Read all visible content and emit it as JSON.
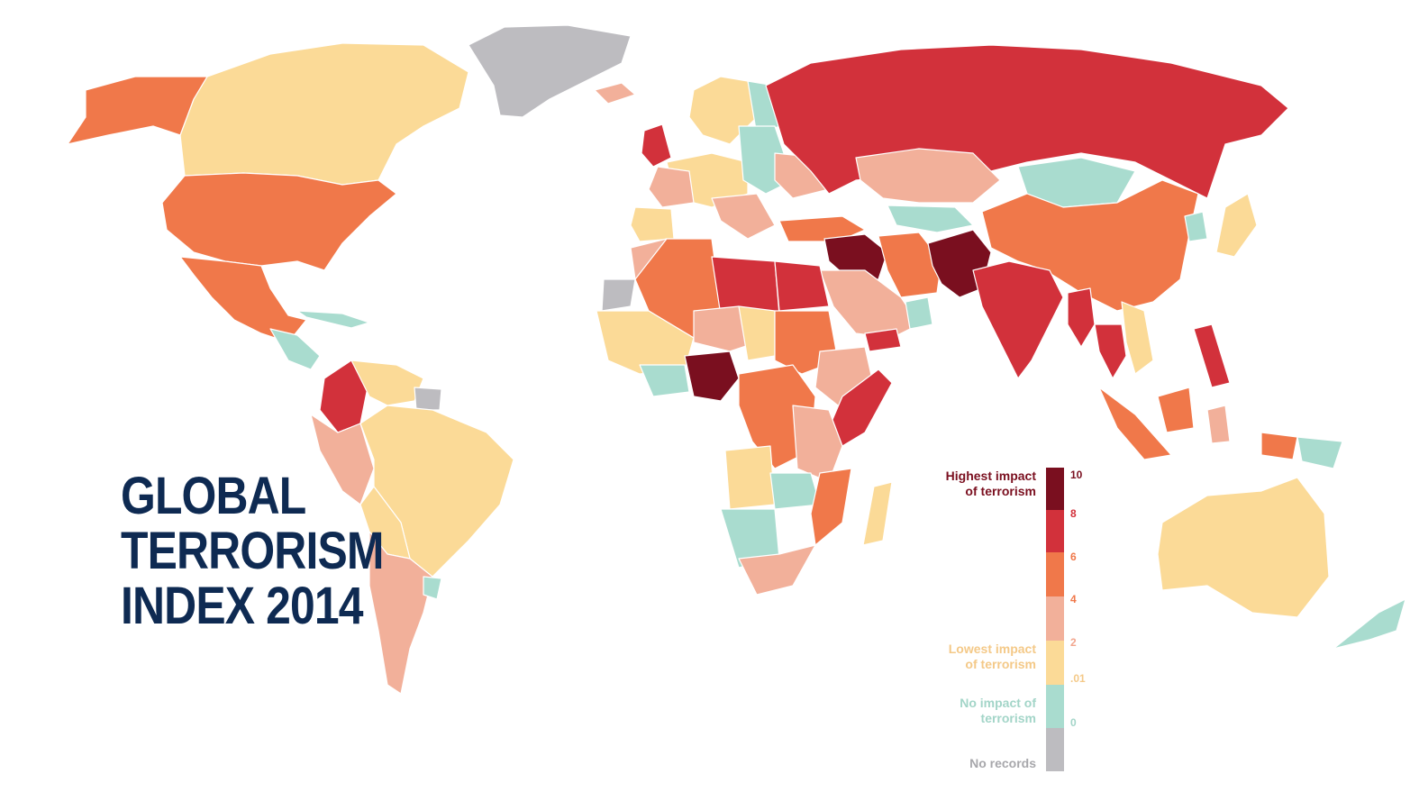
{
  "title": {
    "line1": "GLOBAL",
    "line2": "TERRORISM",
    "line3": "INDEX 2014"
  },
  "legend": {
    "high_label_1": "Highest impact",
    "high_label_2": "of terrorism",
    "low_label_1": "Lowest impact",
    "low_label_2": "of terrorism",
    "none_label_1": "No impact of",
    "none_label_2": "terrorism",
    "norecord_label": "No records",
    "ticks": [
      "10",
      "8",
      "6",
      "4",
      "2",
      ".01",
      "0"
    ],
    "colors": {
      "level_8_10": "#7a0f1f",
      "level_6_8": "#d2313b",
      "level_4_6": "#f0784a",
      "level_2_4": "#f2b09a",
      "level_001_2": "#fbda97",
      "level_0": "#a9dccf",
      "no_records": "#bdbcc0"
    }
  }
}
